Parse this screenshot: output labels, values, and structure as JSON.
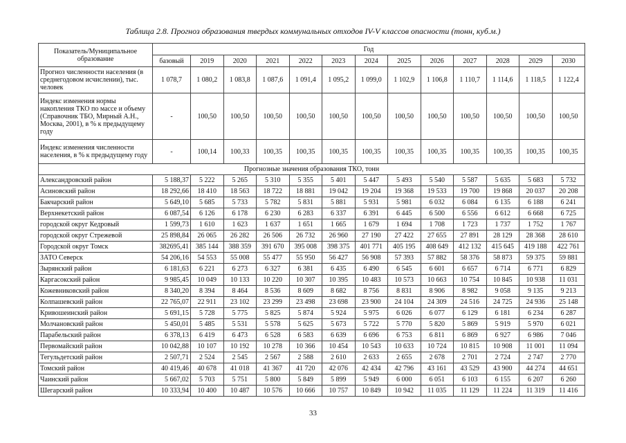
{
  "title": "Таблица 2.8. Прогноз образования твердых коммунальных отходов IV-V классов опасности (тонн, куб.м.)",
  "table": {
    "header": {
      "indicator": "Показатель/Муниципальное образование",
      "year": "Год",
      "base": "базовый",
      "years": [
        "2019",
        "2020",
        "2021",
        "2022",
        "2023",
        "2024",
        "2025",
        "2026",
        "2027",
        "2028",
        "2029",
        "2030"
      ]
    },
    "indicators": [
      {
        "label": "Прогноз численности населения (в среднегодовом исчислении), тыс. человек",
        "cells": [
          "1 078,7",
          "1 080,2",
          "1 083,8",
          "1 087,6",
          "1 091,4",
          "1 095,2",
          "1 099,0",
          "1 102,9",
          "1 106,8",
          "1 110,7",
          "1 114,6",
          "1 118,5",
          "1 122,4"
        ]
      },
      {
        "label": "Индекс изменения нормы накопления ТКО по массе и объему (Справочник ТБО, Мирный А.Н., Москва, 2001), в % к предыдущему году",
        "cells": [
          "-",
          "100,50",
          "100,50",
          "100,50",
          "100,50",
          "100,50",
          "100,50",
          "100,50",
          "100,50",
          "100,50",
          "100,50",
          "100,50",
          "100,50"
        ]
      },
      {
        "label": "Индекс изменения численности населения, в % к предыдущему году",
        "cells": [
          "-",
          "100,14",
          "100,33",
          "100,35",
          "100,35",
          "100,35",
          "100,35",
          "100,35",
          "100,35",
          "100,35",
          "100,35",
          "100,35",
          "100,35"
        ]
      }
    ],
    "section": "Прогнозные значения образования ТКО, тонн",
    "districts": [
      {
        "label": "Александровский район",
        "cells": [
          "5 188,37",
          "5 222",
          "5 265",
          "5 310",
          "5 355",
          "5 401",
          "5 447",
          "5 493",
          "5 540",
          "5 587",
          "5 635",
          "5 683",
          "5 732"
        ]
      },
      {
        "label": "Асиновский район",
        "cells": [
          "18 292,66",
          "18 410",
          "18 563",
          "18 722",
          "18 881",
          "19 042",
          "19 204",
          "19 368",
          "19 533",
          "19 700",
          "19 868",
          "20 037",
          "20 208"
        ]
      },
      {
        "label": "Бакчарский район",
        "cells": [
          "5 649,10",
          "5 685",
          "5 733",
          "5 782",
          "5 831",
          "5 881",
          "5 931",
          "5 981",
          "6 032",
          "6 084",
          "6 135",
          "6 188",
          "6 241"
        ]
      },
      {
        "label": "Верхнекетский район",
        "cells": [
          "6 087,54",
          "6 126",
          "6 178",
          "6 230",
          "6 283",
          "6 337",
          "6 391",
          "6 445",
          "6 500",
          "6 556",
          "6 612",
          "6 668",
          "6 725"
        ]
      },
      {
        "label": "городской округ Кедровый",
        "cells": [
          "1 599,73",
          "1 610",
          "1 623",
          "1 637",
          "1 651",
          "1 665",
          "1 679",
          "1 694",
          "1 708",
          "1 723",
          "1 737",
          "1 752",
          "1 767"
        ]
      },
      {
        "label": "городской округ Стрежевой",
        "cells": [
          "25 898,84",
          "26 065",
          "26 282",
          "26 506",
          "26 732",
          "26 960",
          "27 190",
          "27 422",
          "27 655",
          "27 891",
          "28 129",
          "28 368",
          "28 610"
        ]
      },
      {
        "label": "Городской округ Томск",
        "cells": [
          "382695,41",
          "385 144",
          "388 359",
          "391 670",
          "395 008",
          "398 375",
          "401 771",
          "405 195",
          "408 649",
          "412 132",
          "415 645",
          "419 188",
          "422 761"
        ]
      },
      {
        "label": "ЗАТО Северск",
        "cells": [
          "54 206,16",
          "54 553",
          "55 008",
          "55 477",
          "55 950",
          "56 427",
          "56 908",
          "57 393",
          "57 882",
          "58 376",
          "58 873",
          "59 375",
          "59 881"
        ]
      },
      {
        "label": "Зырянский район",
        "cells": [
          "6 181,63",
          "6 221",
          "6 273",
          "6 327",
          "6 381",
          "6 435",
          "6 490",
          "6 545",
          "6 601",
          "6 657",
          "6 714",
          "6 771",
          "6 829"
        ]
      },
      {
        "label": "Каргасокский район",
        "cells": [
          "9 985,45",
          "10 049",
          "10 133",
          "10 220",
          "10 307",
          "10 395",
          "10 483",
          "10 573",
          "10 663",
          "10 754",
          "10 845",
          "10 938",
          "11 031"
        ]
      },
      {
        "label": "Кожевниковский район",
        "cells": [
          "8 340,20",
          "8 394",
          "8 464",
          "8 536",
          "8 609",
          "8 682",
          "8 756",
          "8 831",
          "8 906",
          "8 982",
          "9 058",
          "9 135",
          "9 213"
        ]
      },
      {
        "label": "Колпашевский район",
        "cells": [
          "22 765,07",
          "22 911",
          "23 102",
          "23 299",
          "23 498",
          "23 698",
          "23 900",
          "24 104",
          "24 309",
          "24 516",
          "24 725",
          "24 936",
          "25 148"
        ]
      },
      {
        "label": "Кривошеинский район",
        "cells": [
          "5 691,15",
          "5 728",
          "5 775",
          "5 825",
          "5 874",
          "5 924",
          "5 975",
          "6 026",
          "6 077",
          "6 129",
          "6 181",
          "6 234",
          "6 287"
        ]
      },
      {
        "label": "Молчановский район",
        "cells": [
          "5 450,01",
          "5 485",
          "5 531",
          "5 578",
          "5 625",
          "5 673",
          "5 722",
          "5 770",
          "5 820",
          "5 869",
          "5 919",
          "5 970",
          "6 021"
        ]
      },
      {
        "label": "Парабельский район",
        "cells": [
          "6 378,13",
          "6 419",
          "6 473",
          "6 528",
          "6 583",
          "6 639",
          "6 696",
          "6 753",
          "6 811",
          "6 869",
          "6 927",
          "6 986",
          "7 046"
        ]
      },
      {
        "label": "Первомайский район",
        "cells": [
          "10 042,88",
          "10 107",
          "10 192",
          "10 278",
          "10 366",
          "10 454",
          "10 543",
          "10 633",
          "10 724",
          "10 815",
          "10 908",
          "11 001",
          "11 094"
        ]
      },
      {
        "label": "Тегульдетский район",
        "cells": [
          "2 507,71",
          "2 524",
          "2 545",
          "2 567",
          "2 588",
          "2 610",
          "2 633",
          "2 655",
          "2 678",
          "2 701",
          "2 724",
          "2 747",
          "2 770"
        ]
      },
      {
        "label": "Томский район",
        "cells": [
          "40 419,46",
          "40 678",
          "41 018",
          "41 367",
          "41 720",
          "42 076",
          "42 434",
          "42 796",
          "43 161",
          "43 529",
          "43 900",
          "44 274",
          "44 651"
        ]
      },
      {
        "label": "Чаинский район",
        "cells": [
          "5 667,02",
          "5 703",
          "5 751",
          "5 800",
          "5 849",
          "5 899",
          "5 949",
          "6 000",
          "6 051",
          "6 103",
          "6 155",
          "6 207",
          "6 260"
        ]
      },
      {
        "label": "Шегарский район",
        "cells": [
          "10 333,94",
          "10 400",
          "10 487",
          "10 576",
          "10 666",
          "10 757",
          "10 849",
          "10 942",
          "11 035",
          "11 129",
          "11 224",
          "11 319",
          "11 416"
        ]
      }
    ]
  },
  "page_number": "33"
}
